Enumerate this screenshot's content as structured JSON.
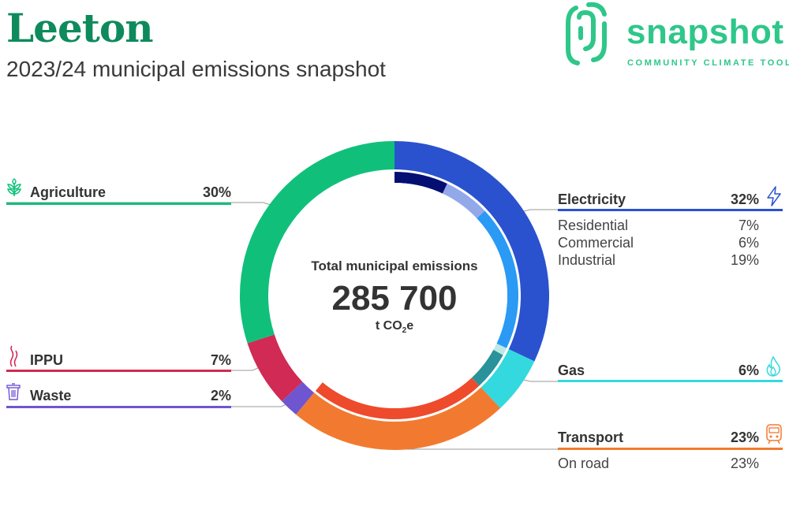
{
  "header": {
    "title": "Leeton",
    "subtitle": "2023/24 municipal emissions snapshot"
  },
  "brand": {
    "name": "snapshot",
    "tagline": "COMMUNITY CLIMATE TOOL",
    "color": "#2ec789"
  },
  "center": {
    "caption": "Total municipal emissions",
    "total": "285 700",
    "unit_prefix": "t CO",
    "unit_sub": "2",
    "unit_suffix": "e"
  },
  "chart_data": {
    "type": "pie",
    "total_tco2e": 285700,
    "sectors": [
      {
        "name": "Electricity",
        "pct_label": "32%",
        "value": 32,
        "color": "#2a52cf",
        "icon": "lightning-icon",
        "subsectors": [
          {
            "name": "Residential",
            "pct_label": "7%",
            "value": 7,
            "color": "#040f73"
          },
          {
            "name": "Commercial",
            "pct_label": "6%",
            "value": 6,
            "color": "#93a8e8"
          },
          {
            "name": "Industrial",
            "pct_label": "19%",
            "value": 19,
            "color": "#2a9af5"
          }
        ]
      },
      {
        "name": "Gas",
        "pct_label": "6%",
        "value": 6,
        "color": "#33d9de",
        "icon": "flame-icon",
        "subsectors": [
          {
            "name": "",
            "value": 1,
            "color": "#bde8e4"
          },
          {
            "name": "",
            "value": 5,
            "color": "#29929b"
          }
        ]
      },
      {
        "name": "Transport",
        "pct_label": "23%",
        "value": 23,
        "color": "#f27a30",
        "icon": "train-icon",
        "subsectors": [
          {
            "name": "On road",
            "pct_label": "23%",
            "value": 23,
            "color": "#ee4a2c"
          }
        ]
      },
      {
        "name": "Waste",
        "pct_label": "2%",
        "value": 2,
        "color": "#7055d0",
        "icon": "bin-icon",
        "subsectors": []
      },
      {
        "name": "IPPU",
        "pct_label": "7%",
        "value": 7,
        "color": "#d02a55",
        "icon": "smoke-icon",
        "subsectors": []
      },
      {
        "name": "Agriculture",
        "pct_label": "30%",
        "value": 30,
        "color": "#10c07a",
        "icon": "plant-icon",
        "subsectors": []
      }
    ]
  }
}
